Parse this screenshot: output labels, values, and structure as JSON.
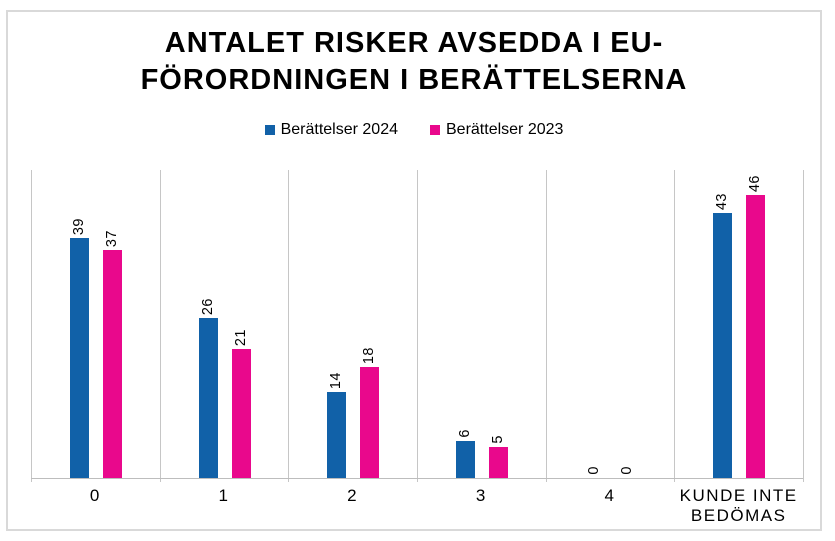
{
  "chart_data": {
    "type": "bar",
    "title": "ANTALET RISKER AVSEDDA I EU-FÖRORDNINGEN I BERÄTTELSERNA",
    "title_display": "ANTALET RISKER AVSEDDA I EU-\nFÖRORDNINGEN I BERÄTTELSERNA",
    "categories": [
      "0",
      "1",
      "2",
      "3",
      "4",
      "KUNDE INTE BEDÖMAS"
    ],
    "series": [
      {
        "name": "Berättelser 2024",
        "color": "#1161A8",
        "values": [
          39,
          26,
          14,
          6,
          0,
          43
        ]
      },
      {
        "name": "Berättelser 2023",
        "color": "#E9088C",
        "values": [
          37,
          21,
          18,
          5,
          0,
          46
        ]
      }
    ],
    "xlabel": "",
    "ylabel": "",
    "ylim": [
      0,
      50
    ],
    "y_axis_labels_visible": false,
    "grid": "vertical-category-separators-only",
    "data_labels": "rotated-90-above-bars",
    "legend_position": "top-center"
  },
  "colors": {
    "frame_border": "#D9D9D9",
    "gridline": "#C6C6C6",
    "axis_line": "#BDBDBD",
    "text": "#000000",
    "background": "#FFFFFF"
  }
}
